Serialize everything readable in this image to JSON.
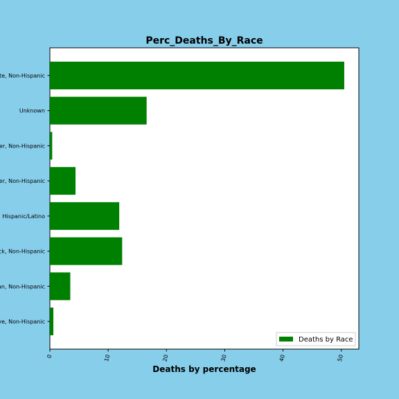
{
  "chart_data": {
    "type": "bar",
    "orientation": "horizontal",
    "title": "Perc_Deaths_By_Race",
    "xlabel": "Deaths by percentage",
    "ylabel": "",
    "categories": [
      "Native, Non-Hispanic",
      "Asian, Non-Hispanic",
      "Black, Non-Hispanic",
      "Hispanic/Latino",
      "Other, Non-Hispanic",
      "Islander, Non-Hispanic",
      "Unknown",
      "White, Non-Hispanic"
    ],
    "series": [
      {
        "name": "Deaths by Race",
        "values": [
          0.6,
          3.5,
          12.4,
          11.9,
          4.4,
          0.4,
          16.6,
          50.5
        ]
      }
    ],
    "xlim": [
      0,
      53
    ],
    "xticks": [
      0,
      10,
      20,
      30,
      40,
      50
    ],
    "grid": false,
    "legend_position": "bottom-right",
    "colors": {
      "figure_background": "#87ceeb",
      "plot_background": "#ffffff",
      "bar": "#008000"
    }
  }
}
